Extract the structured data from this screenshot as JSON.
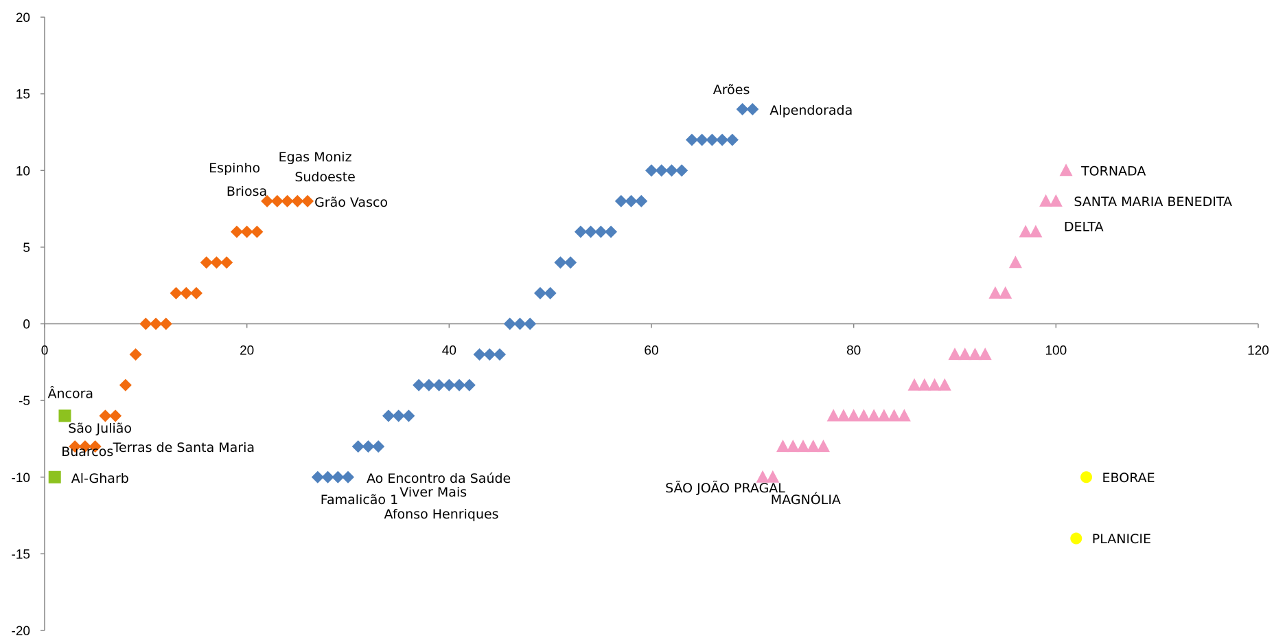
{
  "chart_data": {
    "type": "scatter",
    "title": "",
    "xlabel": "",
    "ylabel": "",
    "xlim": [
      0,
      120
    ],
    "ylim": [
      -20,
      20
    ],
    "x_ticks": [
      0,
      20,
      40,
      60,
      80,
      100,
      120
    ],
    "y_ticks": [
      -20,
      -15,
      -10,
      -5,
      0,
      5,
      10,
      15,
      20
    ],
    "grid": false,
    "legend": "none",
    "series": [
      {
        "marker": "square",
        "color": "#8DC21F",
        "points": [
          [
            2,
            -6
          ],
          [
            1,
            -10
          ]
        ]
      },
      {
        "marker": "diamond",
        "color": "#F26B0F",
        "points": [
          [
            3,
            -8
          ],
          [
            4,
            -8
          ],
          [
            5,
            -8
          ],
          [
            6,
            -6
          ],
          [
            7,
            -6
          ],
          [
            8,
            -4
          ],
          [
            9,
            -2
          ],
          [
            10,
            0
          ],
          [
            11,
            0
          ],
          [
            12,
            0
          ],
          [
            13,
            2
          ],
          [
            14,
            2
          ],
          [
            15,
            2
          ],
          [
            16,
            4
          ],
          [
            17,
            4
          ],
          [
            18,
            4
          ],
          [
            19,
            6
          ],
          [
            20,
            6
          ],
          [
            21,
            6
          ],
          [
            22,
            8
          ],
          [
            23,
            8
          ],
          [
            24,
            8
          ],
          [
            25,
            8
          ],
          [
            26,
            8
          ]
        ]
      },
      {
        "marker": "diamond",
        "color": "#4F81BD",
        "points": [
          [
            27,
            -10
          ],
          [
            28,
            -10
          ],
          [
            29,
            -10
          ],
          [
            30,
            -10
          ],
          [
            31,
            -8
          ],
          [
            32,
            -8
          ],
          [
            33,
            -8
          ],
          [
            34,
            -6
          ],
          [
            35,
            -6
          ],
          [
            36,
            -6
          ],
          [
            37,
            -4
          ],
          [
            38,
            -4
          ],
          [
            39,
            -4
          ],
          [
            40,
            -4
          ],
          [
            41,
            -4
          ],
          [
            42,
            -4
          ],
          [
            43,
            -2
          ],
          [
            44,
            -2
          ],
          [
            45,
            -2
          ],
          [
            46,
            0
          ],
          [
            47,
            0
          ],
          [
            48,
            0
          ],
          [
            49,
            2
          ],
          [
            50,
            2
          ],
          [
            51,
            4
          ],
          [
            52,
            4
          ],
          [
            53,
            6
          ],
          [
            54,
            6
          ],
          [
            55,
            6
          ],
          [
            56,
            6
          ],
          [
            57,
            8
          ],
          [
            58,
            8
          ],
          [
            59,
            8
          ],
          [
            60,
            10
          ],
          [
            61,
            10
          ],
          [
            62,
            10
          ],
          [
            63,
            10
          ],
          [
            64,
            12
          ],
          [
            65,
            12
          ],
          [
            66,
            12
          ],
          [
            67,
            12
          ],
          [
            68,
            12
          ],
          [
            69,
            14
          ],
          [
            70,
            14
          ]
        ]
      },
      {
        "marker": "triangle",
        "color": "#F49AC2",
        "points": [
          [
            71,
            -10
          ],
          [
            72,
            -10
          ],
          [
            73,
            -8
          ],
          [
            74,
            -8
          ],
          [
            75,
            -8
          ],
          [
            76,
            -8
          ],
          [
            77,
            -8
          ],
          [
            78,
            -6
          ],
          [
            79,
            -6
          ],
          [
            80,
            -6
          ],
          [
            81,
            -6
          ],
          [
            82,
            -6
          ],
          [
            83,
            -6
          ],
          [
            84,
            -6
          ],
          [
            85,
            -6
          ],
          [
            86,
            -4
          ],
          [
            87,
            -4
          ],
          [
            88,
            -4
          ],
          [
            89,
            -4
          ],
          [
            90,
            -2
          ],
          [
            91,
            -2
          ],
          [
            92,
            -2
          ],
          [
            93,
            -2
          ],
          [
            94,
            2
          ],
          [
            95,
            2
          ],
          [
            96,
            4
          ],
          [
            97,
            6
          ],
          [
            98,
            6
          ],
          [
            99,
            8
          ],
          [
            100,
            8
          ],
          [
            101,
            10
          ]
        ]
      },
      {
        "marker": "circle",
        "color": "#FFFF00",
        "points": [
          [
            103,
            -10
          ],
          [
            102,
            -14
          ]
        ]
      }
    ],
    "annotations": [
      {
        "text": "Âncora",
        "x": 2,
        "y": -6
      },
      {
        "text": "São Julião",
        "x": 3,
        "y": -8
      },
      {
        "text": "Buarcos",
        "x": 3,
        "y": -8
      },
      {
        "text": "Terras de Santa Maria",
        "x": 5,
        "y": -8
      },
      {
        "text": "Al-Gharb",
        "x": 1,
        "y": -10
      },
      {
        "text": "Espinho",
        "x": 22,
        "y": 8
      },
      {
        "text": "Briosa",
        "x": 22,
        "y": 8
      },
      {
        "text": "Egas Moniz",
        "x": 24,
        "y": 8
      },
      {
        "text": "Sudoeste",
        "x": 25,
        "y": 8
      },
      {
        "text": "Grão Vasco",
        "x": 26,
        "y": 8
      },
      {
        "text": "Ao Encontro da Saúde",
        "x": 30,
        "y": -10
      },
      {
        "text": "Famalicão 1",
        "x": 27,
        "y": -10
      },
      {
        "text": "Viver Mais",
        "x": 29,
        "y": -10
      },
      {
        "text": "Afonso Henriques",
        "x": 28,
        "y": -10
      },
      {
        "text": "Arões",
        "x": 69,
        "y": 14
      },
      {
        "text": "Alpendorada",
        "x": 70,
        "y": 14
      },
      {
        "text": "SÃO JOÃO PRAGAL",
        "x": 71,
        "y": -10
      },
      {
        "text": "MAGNÓLIA",
        "x": 72,
        "y": -10
      },
      {
        "text": "TORNADA",
        "x": 101,
        "y": 10
      },
      {
        "text": "SANTA MARIA BENEDITA",
        "x": 100,
        "y": 8
      },
      {
        "text": "DELTA",
        "x": 98,
        "y": 6
      },
      {
        "text": "EBORAE",
        "x": 103,
        "y": -10
      },
      {
        "text": "PLANICIE",
        "x": 102,
        "y": -14
      }
    ]
  }
}
